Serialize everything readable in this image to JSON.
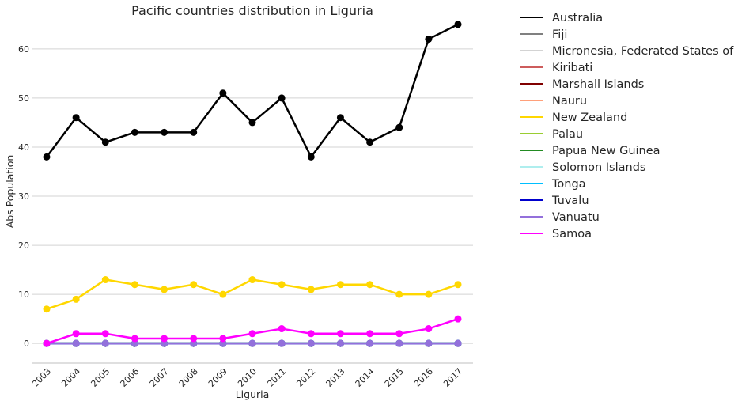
{
  "chart_data": {
    "type": "line",
    "title": "Pacific countries distribution in Liguria",
    "xlabel": "Liguria",
    "ylabel": "Abs Population",
    "ylim": [
      -4,
      69
    ],
    "yticks": [
      0,
      10,
      20,
      30,
      40,
      50,
      60
    ],
    "grid": true,
    "legend_position": "outside-right",
    "x": [
      "2003",
      "2004",
      "2005",
      "2006",
      "2007",
      "2008",
      "2009",
      "2010",
      "2011",
      "2012",
      "2013",
      "2014",
      "2015",
      "2016",
      "2017"
    ],
    "series": [
      {
        "name": "Australia",
        "color": "#000000",
        "values": [
          38,
          46,
          41,
          43,
          43,
          43,
          51,
          45,
          50,
          38,
          46,
          41,
          44,
          62,
          65
        ]
      },
      {
        "name": "Fiji",
        "color": "#808080",
        "values": [
          0,
          0,
          0,
          0,
          0,
          0,
          0,
          0,
          0,
          0,
          0,
          0,
          0,
          0,
          0
        ]
      },
      {
        "name": "Micronesia, Federated States of",
        "color": "#d3d3d3",
        "values": [
          0,
          0,
          0,
          0,
          0,
          0,
          0,
          0,
          0,
          0,
          0,
          0,
          0,
          0,
          0
        ]
      },
      {
        "name": "Kiribati",
        "color": "#cd5c5c",
        "values": [
          0,
          0,
          0,
          0,
          0,
          0,
          0,
          0,
          0,
          0,
          0,
          0,
          0,
          0,
          0
        ]
      },
      {
        "name": "Marshall Islands",
        "color": "#800000",
        "values": [
          0,
          0,
          0,
          0,
          0,
          0,
          0,
          0,
          0,
          0,
          0,
          0,
          0,
          0,
          0
        ]
      },
      {
        "name": "Nauru",
        "color": "#ffa07a",
        "values": [
          0,
          0,
          0,
          0,
          0,
          0,
          0,
          0,
          0,
          0,
          0,
          0,
          0,
          0,
          0
        ]
      },
      {
        "name": "New Zealand",
        "color": "#ffd700",
        "values": [
          7,
          9,
          13,
          12,
          11,
          12,
          10,
          13,
          12,
          11,
          12,
          12,
          10,
          10,
          12
        ]
      },
      {
        "name": "Palau",
        "color": "#9acd32",
        "values": [
          0,
          0,
          0,
          0,
          0,
          0,
          0,
          0,
          0,
          0,
          0,
          0,
          0,
          0,
          0
        ]
      },
      {
        "name": "Papua New Guinea",
        "color": "#228b22",
        "values": [
          0,
          0,
          0,
          0,
          0,
          0,
          0,
          0,
          0,
          0,
          0,
          0,
          0,
          0,
          0
        ]
      },
      {
        "name": "Solomon Islands",
        "color": "#afeeee",
        "values": [
          0,
          0,
          0,
          0,
          0,
          0,
          0,
          0,
          0,
          0,
          0,
          0,
          0,
          0,
          0
        ]
      },
      {
        "name": "Tonga",
        "color": "#00bfff",
        "values": [
          0,
          0,
          0,
          0,
          0,
          0,
          0,
          0,
          0,
          0,
          0,
          0,
          0,
          0,
          0
        ]
      },
      {
        "name": "Tuvalu",
        "color": "#0000cd",
        "values": [
          0,
          0,
          0,
          0,
          0,
          0,
          0,
          0,
          0,
          0,
          0,
          0,
          0,
          0,
          0
        ]
      },
      {
        "name": "Vanuatu",
        "color": "#9370db",
        "values": [
          0,
          0,
          0,
          0,
          0,
          0,
          0,
          0,
          0,
          0,
          0,
          0,
          0,
          0,
          0
        ]
      },
      {
        "name": "Samoa",
        "color": "#ff00ff",
        "values": [
          0,
          2,
          2,
          1,
          1,
          1,
          1,
          2,
          3,
          2,
          2,
          2,
          2,
          3,
          5
        ]
      }
    ]
  }
}
